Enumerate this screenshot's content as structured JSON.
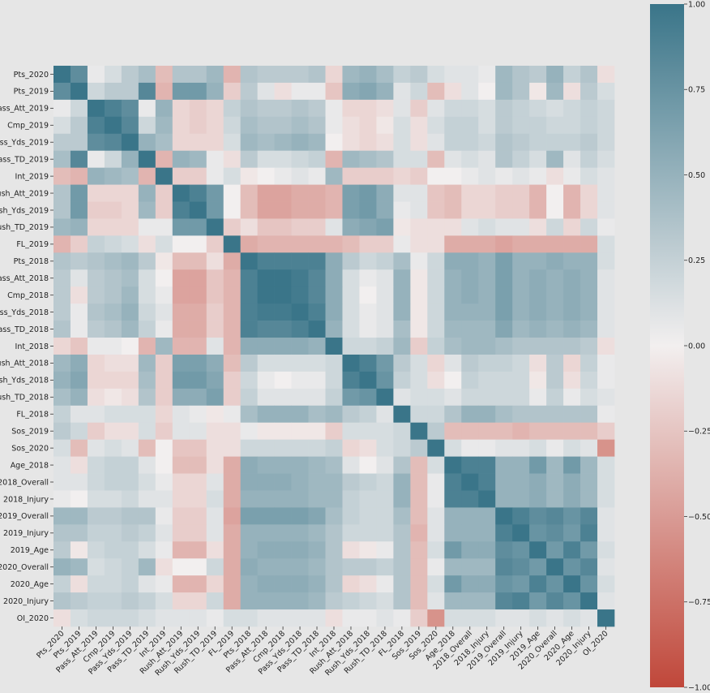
{
  "chart_data": {
    "type": "heatmap",
    "title": "",
    "variables": [
      "Pts_2020",
      "Pts_2019",
      "Pass_Att_2019",
      "Cmp_2019",
      "Pass_Yds_2019",
      "Pass_TD_2019",
      "Int_2019",
      "Rush_Att_2019",
      "Rush_Yds_2019",
      "Rush_TD_2019",
      "FL_2019",
      "Pts_2018",
      "Pass_Att_2018",
      "Cmp_2018",
      "Pass_Yds_2018",
      "Pass_TD_2018",
      "Int_2018",
      "Rush_Att_2018",
      "Rush_Yds_2018",
      "Rush_TD_2018",
      "FL_2018",
      "Sos_2019",
      "Sos_2020",
      "Age_2018",
      "2018_Overall",
      "2018_Injury",
      "2019_Overall",
      "2019_Injury",
      "2019_Age",
      "2020_Overall",
      "2020_Age",
      "2020_Injury",
      "OI_2020"
    ],
    "matrix": [
      [
        1.0,
        0.8,
        0.05,
        0.15,
        0.3,
        0.4,
        -0.3,
        0.35,
        0.35,
        0.45,
        -0.35,
        0.35,
        0.3,
        0.3,
        0.3,
        0.35,
        -0.15,
        0.45,
        0.5,
        0.4,
        0.25,
        0.3,
        0.15,
        0.1,
        0.1,
        0.05,
        0.45,
        0.35,
        0.3,
        0.5,
        0.25,
        0.35,
        -0.1
      ],
      [
        0.8,
        1.0,
        0.2,
        0.3,
        0.3,
        0.85,
        -0.35,
        0.7,
        0.7,
        0.5,
        -0.2,
        0.3,
        0.1,
        -0.1,
        0.05,
        0.05,
        -0.25,
        0.55,
        0.6,
        0.5,
        0.1,
        0.2,
        -0.3,
        -0.1,
        0.1,
        0.0,
        0.45,
        0.35,
        -0.05,
        0.45,
        -0.1,
        0.3,
        0.15
      ],
      [
        0.05,
        0.2,
        1.0,
        0.9,
        0.8,
        0.05,
        0.5,
        -0.15,
        -0.2,
        -0.15,
        0.25,
        0.35,
        0.3,
        0.3,
        0.35,
        0.3,
        0.05,
        -0.15,
        -0.15,
        -0.1,
        0.1,
        -0.2,
        0.1,
        0.2,
        0.2,
        0.15,
        0.3,
        0.25,
        0.2,
        0.15,
        0.2,
        0.25,
        0.2
      ],
      [
        0.15,
        0.3,
        0.9,
        1.0,
        0.85,
        0.2,
        0.45,
        -0.15,
        -0.2,
        -0.15,
        0.2,
        0.4,
        0.35,
        0.35,
        0.4,
        0.35,
        0.05,
        -0.1,
        -0.15,
        -0.05,
        0.15,
        -0.1,
        0.15,
        0.25,
        0.25,
        0.15,
        0.3,
        0.25,
        0.25,
        0.2,
        0.2,
        0.25,
        0.2
      ],
      [
        0.3,
        0.3,
        0.8,
        0.85,
        1.0,
        0.5,
        0.4,
        -0.15,
        -0.15,
        -0.15,
        0.15,
        0.45,
        0.4,
        0.45,
        0.5,
        0.45,
        0.0,
        -0.1,
        -0.15,
        -0.1,
        0.15,
        -0.1,
        0.1,
        0.25,
        0.25,
        0.2,
        0.35,
        0.3,
        0.25,
        0.25,
        0.25,
        0.3,
        0.2
      ],
      [
        0.4,
        0.85,
        0.05,
        0.2,
        0.5,
        1.0,
        -0.35,
        0.5,
        0.45,
        0.05,
        -0.1,
        0.3,
        0.15,
        0.15,
        0.2,
        0.25,
        -0.35,
        0.45,
        0.4,
        0.35,
        0.15,
        0.15,
        -0.3,
        0.1,
        0.15,
        0.1,
        0.35,
        0.25,
        0.15,
        0.45,
        0.1,
        0.25,
        0.15
      ],
      [
        -0.3,
        -0.35,
        0.5,
        0.45,
        0.4,
        -0.35,
        1.0,
        -0.2,
        -0.2,
        0.05,
        0.15,
        -0.05,
        0.0,
        0.05,
        0.1,
        0.05,
        0.45,
        -0.2,
        -0.2,
        -0.2,
        -0.15,
        -0.2,
        0.0,
        0.0,
        0.05,
        0.1,
        0.05,
        0.1,
        0.05,
        -0.1,
        0.05,
        0.15,
        0.1
      ],
      [
        0.35,
        0.7,
        -0.15,
        -0.15,
        -0.15,
        0.5,
        -0.2,
        1.0,
        0.9,
        0.7,
        0.0,
        -0.3,
        -0.45,
        -0.45,
        -0.4,
        -0.4,
        -0.35,
        0.65,
        0.7,
        0.55,
        0.1,
        0.1,
        -0.25,
        -0.3,
        -0.15,
        -0.15,
        -0.2,
        -0.2,
        -0.35,
        0.0,
        -0.35,
        -0.15,
        0.1
      ],
      [
        0.35,
        0.7,
        -0.2,
        -0.2,
        -0.15,
        0.45,
        -0.2,
        0.9,
        1.0,
        0.7,
        0.0,
        -0.3,
        -0.45,
        -0.45,
        -0.4,
        -0.4,
        -0.35,
        0.65,
        0.7,
        0.55,
        0.05,
        0.1,
        -0.25,
        -0.3,
        -0.15,
        -0.15,
        -0.2,
        -0.2,
        -0.35,
        0.0,
        -0.35,
        -0.15,
        0.1
      ],
      [
        0.45,
        0.5,
        -0.15,
        -0.15,
        -0.15,
        0.05,
        0.05,
        0.7,
        0.7,
        1.0,
        -0.2,
        -0.1,
        -0.25,
        -0.25,
        -0.2,
        -0.2,
        0.1,
        0.55,
        0.6,
        0.65,
        -0.05,
        -0.1,
        -0.1,
        -0.1,
        0.1,
        0.15,
        0.1,
        0.1,
        -0.1,
        0.2,
        -0.15,
        0.2,
        0.05
      ],
      [
        -0.35,
        -0.2,
        0.25,
        0.2,
        0.15,
        -0.1,
        0.15,
        0.0,
        0.0,
        -0.2,
        1.0,
        -0.4,
        -0.35,
        -0.35,
        -0.35,
        -0.35,
        -0.35,
        -0.3,
        -0.2,
        -0.2,
        0.05,
        -0.1,
        -0.1,
        -0.4,
        -0.4,
        -0.4,
        -0.45,
        -0.4,
        -0.4,
        -0.4,
        -0.4,
        -0.4,
        0.15
      ],
      [
        0.35,
        0.3,
        0.35,
        0.4,
        0.45,
        0.3,
        -0.05,
        -0.3,
        -0.3,
        -0.1,
        -0.4,
        1.0,
        0.9,
        0.9,
        0.9,
        0.9,
        0.55,
        0.3,
        0.2,
        0.25,
        0.4,
        0.05,
        0.2,
        0.55,
        0.55,
        0.5,
        0.65,
        0.5,
        0.5,
        0.55,
        0.5,
        0.5,
        0.15
      ],
      [
        0.3,
        0.1,
        0.3,
        0.35,
        0.4,
        0.15,
        0.0,
        -0.45,
        -0.45,
        -0.25,
        -0.35,
        0.9,
        1.0,
        1.0,
        0.95,
        0.85,
        0.55,
        0.15,
        0.05,
        0.1,
        0.5,
        -0.05,
        0.2,
        0.5,
        0.55,
        0.5,
        0.65,
        0.5,
        0.55,
        0.5,
        0.55,
        0.5,
        0.1
      ],
      [
        0.3,
        -0.1,
        0.3,
        0.35,
        0.45,
        0.15,
        0.05,
        -0.45,
        -0.45,
        -0.25,
        -0.35,
        0.9,
        1.0,
        1.0,
        0.95,
        0.85,
        0.55,
        0.15,
        0.0,
        0.1,
        0.5,
        -0.05,
        0.2,
        0.5,
        0.55,
        0.5,
        0.65,
        0.5,
        0.55,
        0.5,
        0.55,
        0.5,
        0.1
      ],
      [
        0.3,
        0.05,
        0.35,
        0.4,
        0.5,
        0.2,
        0.1,
        -0.4,
        -0.4,
        -0.2,
        -0.35,
        0.9,
        0.95,
        0.95,
        1.0,
        0.9,
        0.55,
        0.15,
        0.05,
        0.1,
        0.5,
        -0.05,
        0.2,
        0.5,
        0.5,
        0.5,
        0.65,
        0.5,
        0.55,
        0.5,
        0.55,
        0.5,
        0.1
      ],
      [
        0.35,
        0.05,
        0.3,
        0.35,
        0.45,
        0.25,
        0.05,
        -0.4,
        -0.4,
        -0.2,
        -0.35,
        0.9,
        0.85,
        0.85,
        0.9,
        1.0,
        0.5,
        0.15,
        0.05,
        0.1,
        0.4,
        -0.05,
        0.2,
        0.45,
        0.45,
        0.45,
        0.6,
        0.45,
        0.5,
        0.45,
        0.5,
        0.45,
        0.1
      ],
      [
        -0.15,
        -0.25,
        0.05,
        0.05,
        0.0,
        -0.35,
        0.45,
        -0.35,
        -0.35,
        0.1,
        -0.35,
        0.55,
        0.55,
        0.55,
        0.55,
        0.5,
        1.0,
        0.2,
        0.2,
        0.25,
        0.45,
        -0.2,
        0.25,
        0.4,
        0.45,
        0.45,
        0.4,
        0.35,
        0.35,
        0.35,
        0.35,
        0.3,
        -0.1
      ],
      [
        0.45,
        0.55,
        -0.15,
        -0.1,
        -0.1,
        0.45,
        -0.2,
        0.65,
        0.65,
        0.55,
        -0.3,
        0.3,
        0.15,
        0.15,
        0.15,
        0.15,
        0.2,
        1.0,
        0.9,
        0.7,
        0.3,
        0.15,
        -0.15,
        0.1,
        0.3,
        0.25,
        0.25,
        0.2,
        -0.1,
        0.3,
        -0.15,
        0.25,
        0.05
      ],
      [
        0.5,
        0.6,
        -0.15,
        -0.15,
        -0.15,
        0.4,
        -0.2,
        0.7,
        0.7,
        0.6,
        -0.2,
        0.2,
        0.05,
        0.0,
        0.05,
        0.05,
        0.2,
        0.9,
        1.0,
        0.75,
        0.25,
        0.15,
        -0.1,
        0.0,
        0.25,
        0.2,
        0.2,
        0.2,
        -0.05,
        0.3,
        -0.1,
        0.2,
        0.05
      ],
      [
        0.4,
        0.5,
        -0.1,
        -0.05,
        -0.1,
        0.35,
        -0.2,
        0.55,
        0.55,
        0.65,
        -0.2,
        0.25,
        0.1,
        0.1,
        0.1,
        0.1,
        0.25,
        0.7,
        0.75,
        1.0,
        0.1,
        0.15,
        0.15,
        0.1,
        0.2,
        0.2,
        0.2,
        0.2,
        0.05,
        0.25,
        0.05,
        0.15,
        0.1
      ],
      [
        0.25,
        0.1,
        0.1,
        0.15,
        0.15,
        0.15,
        -0.15,
        0.1,
        0.05,
        -0.05,
        0.05,
        0.4,
        0.5,
        0.5,
        0.5,
        0.4,
        0.45,
        0.3,
        0.25,
        0.1,
        1.0,
        0.2,
        0.2,
        0.35,
        0.5,
        0.5,
        0.4,
        0.35,
        0.35,
        0.35,
        0.35,
        0.35,
        0.05
      ],
      [
        0.3,
        0.2,
        -0.2,
        -0.1,
        -0.1,
        0.15,
        -0.2,
        0.1,
        0.1,
        -0.1,
        -0.1,
        0.05,
        -0.05,
        -0.05,
        -0.05,
        -0.05,
        -0.2,
        0.15,
        0.15,
        0.15,
        0.2,
        1.0,
        0.3,
        -0.3,
        -0.3,
        -0.3,
        -0.3,
        -0.35,
        -0.3,
        -0.3,
        -0.3,
        -0.3,
        -0.2
      ],
      [
        0.15,
        -0.3,
        0.1,
        0.15,
        0.1,
        -0.3,
        0.0,
        -0.25,
        -0.25,
        -0.1,
        -0.1,
        0.2,
        0.2,
        0.2,
        0.2,
        0.2,
        0.25,
        -0.15,
        -0.1,
        0.15,
        0.2,
        0.3,
        1.0,
        0.15,
        0.05,
        0.05,
        0.1,
        0.1,
        0.15,
        0.05,
        0.15,
        0.1,
        -0.55
      ],
      [
        0.1,
        -0.1,
        0.2,
        0.25,
        0.25,
        0.1,
        0.0,
        -0.3,
        -0.3,
        -0.1,
        -0.4,
        0.55,
        0.5,
        0.5,
        0.5,
        0.45,
        0.4,
        0.1,
        0.0,
        0.1,
        0.35,
        -0.3,
        0.15,
        1.0,
        0.9,
        0.9,
        0.5,
        0.5,
        0.7,
        0.45,
        0.7,
        0.45,
        0.15
      ],
      [
        0.1,
        0.1,
        0.2,
        0.25,
        0.25,
        0.15,
        0.05,
        -0.15,
        -0.15,
        0.1,
        -0.4,
        0.55,
        0.55,
        0.55,
        0.5,
        0.45,
        0.45,
        0.3,
        0.25,
        0.2,
        0.5,
        -0.3,
        0.05,
        0.9,
        1.0,
        0.9,
        0.5,
        0.5,
        0.55,
        0.45,
        0.55,
        0.45,
        0.15
      ],
      [
        0.05,
        0.0,
        0.15,
        0.15,
        0.2,
        0.1,
        0.1,
        -0.15,
        -0.15,
        0.15,
        -0.4,
        0.5,
        0.5,
        0.5,
        0.5,
        0.45,
        0.45,
        0.25,
        0.2,
        0.2,
        0.5,
        -0.3,
        0.05,
        0.9,
        0.9,
        1.0,
        0.5,
        0.5,
        0.55,
        0.45,
        0.55,
        0.45,
        0.15
      ],
      [
        0.45,
        0.45,
        0.3,
        0.3,
        0.35,
        0.35,
        0.05,
        -0.2,
        -0.2,
        0.1,
        -0.45,
        0.65,
        0.65,
        0.65,
        0.65,
        0.6,
        0.4,
        0.25,
        0.2,
        0.2,
        0.4,
        -0.3,
        0.1,
        0.5,
        0.5,
        0.5,
        1.0,
        0.9,
        0.8,
        0.85,
        0.75,
        0.85,
        0.1
      ],
      [
        0.35,
        0.35,
        0.25,
        0.25,
        0.3,
        0.25,
        0.1,
        -0.2,
        -0.2,
        0.1,
        -0.4,
        0.5,
        0.5,
        0.5,
        0.5,
        0.45,
        0.35,
        0.2,
        0.2,
        0.2,
        0.35,
        -0.35,
        0.1,
        0.5,
        0.5,
        0.5,
        0.9,
        1.0,
        0.75,
        0.8,
        0.7,
        0.9,
        0.1
      ],
      [
        0.3,
        -0.05,
        0.2,
        0.25,
        0.25,
        0.15,
        0.05,
        -0.35,
        -0.35,
        -0.1,
        -0.4,
        0.5,
        0.55,
        0.55,
        0.55,
        0.5,
        0.35,
        -0.1,
        -0.05,
        0.05,
        0.35,
        -0.3,
        0.15,
        0.7,
        0.55,
        0.55,
        0.8,
        0.75,
        1.0,
        0.7,
        0.9,
        0.7,
        0.15
      ],
      [
        0.5,
        0.45,
        0.15,
        0.2,
        0.25,
        0.45,
        -0.1,
        0.0,
        0.0,
        0.2,
        -0.4,
        0.55,
        0.5,
        0.5,
        0.5,
        0.45,
        0.35,
        0.3,
        0.3,
        0.25,
        0.35,
        -0.3,
        0.05,
        0.45,
        0.45,
        0.45,
        0.85,
        0.8,
        0.7,
        1.0,
        0.75,
        0.85,
        0.1
      ],
      [
        0.25,
        -0.1,
        0.2,
        0.2,
        0.25,
        0.1,
        0.05,
        -0.35,
        -0.35,
        -0.15,
        -0.4,
        0.5,
        0.55,
        0.55,
        0.55,
        0.5,
        0.35,
        -0.15,
        -0.1,
        0.05,
        0.35,
        -0.3,
        0.15,
        0.7,
        0.55,
        0.55,
        0.75,
        0.7,
        0.9,
        0.75,
        1.0,
        0.75,
        0.15
      ],
      [
        0.35,
        0.3,
        0.25,
        0.25,
        0.3,
        0.25,
        0.15,
        -0.15,
        -0.15,
        0.2,
        -0.4,
        0.5,
        0.5,
        0.5,
        0.5,
        0.45,
        0.3,
        0.25,
        0.2,
        0.15,
        0.35,
        -0.3,
        0.1,
        0.45,
        0.45,
        0.45,
        0.85,
        0.9,
        0.7,
        0.85,
        0.75,
        1.0,
        0.1
      ],
      [
        -0.1,
        0.15,
        0.2,
        0.2,
        0.2,
        0.15,
        0.1,
        0.1,
        0.1,
        0.05,
        0.15,
        0.15,
        0.1,
        0.1,
        0.1,
        0.1,
        -0.1,
        0.05,
        0.05,
        0.1,
        0.05,
        -0.2,
        -0.55,
        0.15,
        0.15,
        0.15,
        0.1,
        0.1,
        0.15,
        0.1,
        0.15,
        0.1,
        1.0
      ]
    ],
    "colorbar": {
      "min": -1.0,
      "max": 1.0,
      "ticks": [
        "1.00",
        "0.75",
        "0.50",
        "0.25",
        "0.00",
        "−0.25",
        "−0.50",
        "−0.75",
        "−1.00"
      ],
      "neg_color": "#c0473a",
      "mid_color": "#f2efef",
      "pos_color": "#3a7589"
    }
  }
}
